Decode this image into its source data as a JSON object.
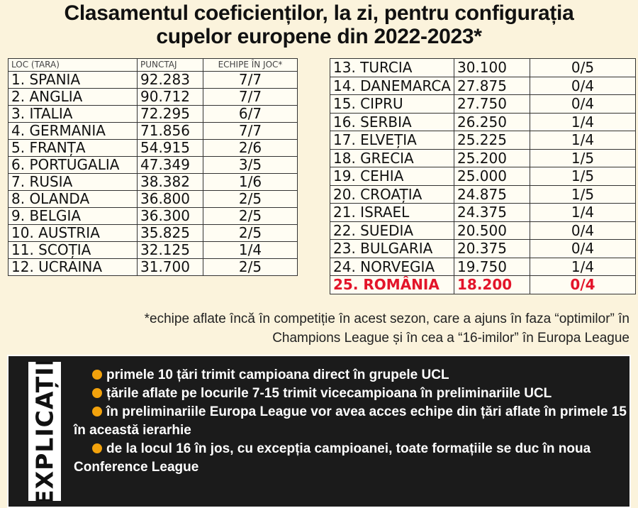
{
  "title": {
    "line1": "Clasamentul coeficienților, la zi, pentru configurația",
    "line2": "cupelor europene din 2022-2023*"
  },
  "table_left": {
    "headers": [
      "LOC (TARA)",
      "PUNCTAJ",
      "ECHIPE ÎN JOC*"
    ],
    "rows": [
      [
        "1. SPANIA",
        "92.283",
        "7/7"
      ],
      [
        "2. ANGLIA",
        "90.712",
        "7/7"
      ],
      [
        "3. ITALIA",
        "72.295",
        "6/7"
      ],
      [
        "4. GERMANIA",
        "71.856",
        "7/7"
      ],
      [
        "5. FRANȚA",
        "54.915",
        "2/6"
      ],
      [
        "6. PORTUGALIA",
        "47.349",
        "3/5"
      ],
      [
        "7. RUSIA",
        "38.382",
        "1/6"
      ],
      [
        "8. OLANDA",
        "36.800",
        "2/5"
      ],
      [
        "9. BELGIA",
        "36.300",
        "2/5"
      ],
      [
        "10. AUSTRIA",
        "35.825",
        "2/5"
      ],
      [
        "11. SCOȚIA",
        "32.125",
        "1/4"
      ],
      [
        "12. UCRAINA",
        "31.700",
        "2/5"
      ]
    ]
  },
  "table_right": {
    "rows": [
      [
        "13. TURCIA",
        "30.100",
        "0/5"
      ],
      [
        "14. DANEMARCA",
        "27.875",
        "0/4"
      ],
      [
        "15. CIPRU",
        "27.750",
        "0/4"
      ],
      [
        "16. SERBIA",
        "26.250",
        "1/4"
      ],
      [
        "17. ELVEȚIA",
        "25.225",
        "1/4"
      ],
      [
        "18. GRECIA",
        "25.200",
        "1/5"
      ],
      [
        "19. CEHIA",
        "25.000",
        "1/5"
      ],
      [
        "20. CROAȚIA",
        "24.875",
        "1/5"
      ],
      [
        "21. ISRAEL",
        "24.375",
        "1/4"
      ],
      [
        "22. SUEDIA",
        "20.500",
        "0/4"
      ],
      [
        "23. BULGARIA",
        "20.375",
        "0/4"
      ],
      [
        "24. NORVEGIA",
        "19.750",
        "1/4"
      ],
      [
        "25. ROMÂNIA",
        "18.200",
        "0/4"
      ]
    ],
    "highlight_color": "#e3142a"
  },
  "footnote": {
    "line1": "*echipe aflate încă în competiție în acest sezon, care a ajuns în faza “optimilor” în",
    "line2": "Champions League și în cea a “16-imilor” în Europa League"
  },
  "explanations": {
    "title": "EXPLICAȚII",
    "bullet_color": "#f2a20c",
    "items": [
      "primele 10 țări trimit campioana direct în grupele UCL",
      "țările aflate pe locurile 7-15 trimit vicecampioana în preliminariile UCL",
      "în preliminariile Europa League vor avea acces echipe din țări aflate în primele 15 în această ierarhie",
      "de la locul 16 în jos, cu excepția campioanei, toate formațiile se duc în noua Conference League"
    ]
  }
}
